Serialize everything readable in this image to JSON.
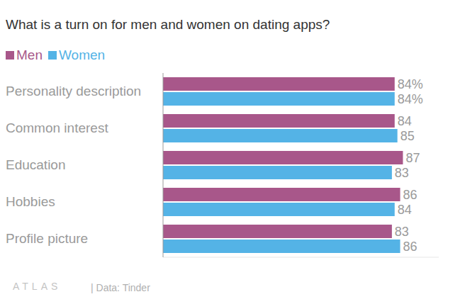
{
  "chart_data": {
    "type": "bar",
    "title": "What is a turn on for men and women on dating apps?",
    "orientation": "horizontal",
    "categories": [
      "Personality description",
      "Common interest",
      "Education",
      "Hobbies",
      "Profile picture"
    ],
    "series": [
      {
        "name": "Men",
        "color": "#a8578a",
        "values": [
          84,
          84,
          87,
          86,
          83
        ],
        "value_labels": [
          "84%",
          "84",
          "87",
          "86",
          "83"
        ]
      },
      {
        "name": "Women",
        "color": "#54b3e6",
        "values": [
          84,
          85,
          83,
          84,
          86
        ],
        "value_labels": [
          "84%",
          "85",
          "83",
          "84",
          "86"
        ]
      }
    ],
    "xlim": [
      0,
      100
    ],
    "xticks": [
      0,
      100
    ],
    "tick_labels": "y",
    "data_labels": true,
    "grid": false,
    "legend": "top left",
    "logo": "ATLAS",
    "source": "| Data: Tinder"
  }
}
